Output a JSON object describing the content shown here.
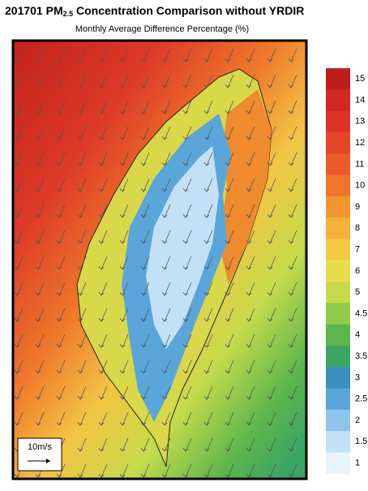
{
  "header": {
    "title_main": "201701 PM",
    "title_sub": "2.5",
    "title_rest": " Concentration Comparison without YRDIR",
    "subtitle": "Monthly Average Difference Percentage (%)"
  },
  "map": {
    "wind_legend": "10m/s"
  },
  "colorbar": {
    "levels": [
      15,
      14,
      13,
      12,
      11,
      10,
      9,
      8,
      7,
      6,
      5,
      4.5,
      4,
      3.5,
      3,
      2.5,
      2,
      1.5,
      1
    ],
    "colors": [
      "#bf1e1c",
      "#d02822",
      "#dd3327",
      "#e5462a",
      "#eb5a29",
      "#ef762b",
      "#f2952f",
      "#f5b139",
      "#f3c944",
      "#e8dc4d",
      "#c6db4b",
      "#8ecb48",
      "#5cb64b",
      "#3ba664",
      "#3a8fbf",
      "#5aa6da",
      "#8ec5ea",
      "#c3e1f6",
      "#e8f4fd"
    ]
  }
}
